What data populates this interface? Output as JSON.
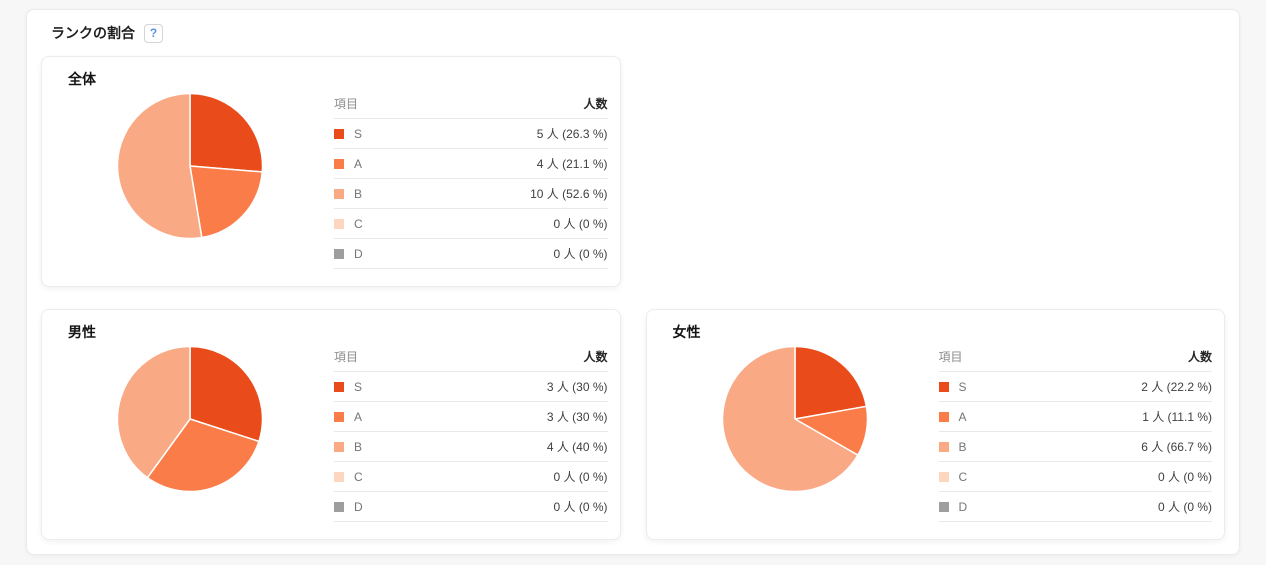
{
  "page": {
    "title": "ランクの割合",
    "help_label": "?",
    "help_icon_color": "#5d94e0"
  },
  "legend": {
    "item_header": "項目",
    "count_header": "人数"
  },
  "rank_colors": {
    "S": "#ea4b1a",
    "A": "#f97c49",
    "B": "#faa985",
    "C": "#fcd6bf",
    "D": "#9e9e9e"
  },
  "chart_data": [
    {
      "type": "pie",
      "title": "全体",
      "categories": [
        "S",
        "A",
        "B",
        "C",
        "D"
      ],
      "values": [
        5,
        4,
        10,
        0,
        0
      ],
      "percents": [
        26.3,
        21.1,
        52.6,
        0,
        0
      ],
      "unit": "人",
      "colors": [
        "#ea4b1a",
        "#f97c49",
        "#faa985",
        "#fcd6bf",
        "#9e9e9e"
      ],
      "legend_position": "right",
      "rows": [
        {
          "label": "S",
          "display": "5 人 (26.3 %)"
        },
        {
          "label": "A",
          "display": "4 人 (21.1 %)"
        },
        {
          "label": "B",
          "display": "10 人 (52.6 %)"
        },
        {
          "label": "C",
          "display": "0 人 (0 %)"
        },
        {
          "label": "D",
          "display": "0 人 (0 %)"
        }
      ]
    },
    {
      "type": "pie",
      "title": "男性",
      "categories": [
        "S",
        "A",
        "B",
        "C",
        "D"
      ],
      "values": [
        3,
        3,
        4,
        0,
        0
      ],
      "percents": [
        30,
        30,
        40,
        0,
        0
      ],
      "unit": "人",
      "colors": [
        "#ea4b1a",
        "#f97c49",
        "#faa985",
        "#fcd6bf",
        "#9e9e9e"
      ],
      "legend_position": "right",
      "rows": [
        {
          "label": "S",
          "display": "3 人 (30 %)"
        },
        {
          "label": "A",
          "display": "3 人 (30 %)"
        },
        {
          "label": "B",
          "display": "4 人 (40 %)"
        },
        {
          "label": "C",
          "display": "0 人 (0 %)"
        },
        {
          "label": "D",
          "display": "0 人 (0 %)"
        }
      ]
    },
    {
      "type": "pie",
      "title": "女性",
      "categories": [
        "S",
        "A",
        "B",
        "C",
        "D"
      ],
      "values": [
        2,
        1,
        6,
        0,
        0
      ],
      "percents": [
        22.2,
        11.1,
        66.7,
        0,
        0
      ],
      "unit": "人",
      "colors": [
        "#ea4b1a",
        "#f97c49",
        "#faa985",
        "#fcd6bf",
        "#9e9e9e"
      ],
      "legend_position": "right",
      "rows": [
        {
          "label": "S",
          "display": "2 人 (22.2 %)"
        },
        {
          "label": "A",
          "display": "1 人 (11.1 %)"
        },
        {
          "label": "B",
          "display": "6 人 (66.7 %)"
        },
        {
          "label": "C",
          "display": "0 人 (0 %)"
        },
        {
          "label": "D",
          "display": "0 人 (0 %)"
        }
      ]
    }
  ]
}
